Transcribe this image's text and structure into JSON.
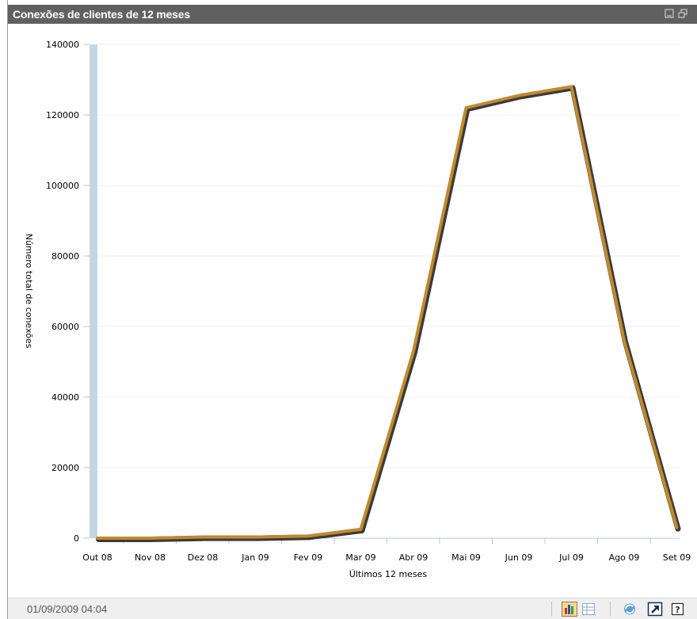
{
  "window": {
    "title": "Conexões de clientes de 12 meses",
    "icons": [
      "minimize-icon",
      "restore-window-icon"
    ]
  },
  "chart_data": {
    "type": "line",
    "xlabel": "Últimos 12 meses",
    "ylabel": "Número total de conexões",
    "categories": [
      "Out 08",
      "Nov 08",
      "Dez 08",
      "Jan 09",
      "Fev 09",
      "Mar 09",
      "Abr 09",
      "Mai 09",
      "Jun 09",
      "Jul 09",
      "Ago 09",
      "Set 09"
    ],
    "values": [
      0,
      0,
      300,
      300,
      600,
      2500,
      53000,
      122000,
      125500,
      128000,
      56000,
      3000
    ],
    "ylim": [
      0,
      140000
    ],
    "yticks": [
      "0",
      "20000",
      "40000",
      "60000",
      "80000",
      "100000",
      "120000",
      "140000"
    ],
    "grid": true,
    "line_color": "#c08a2c"
  },
  "footer": {
    "timestamp": "01/09/2009 04:04",
    "buttons": [
      "chart-view-icon",
      "table-view-icon",
      "refresh-icon",
      "open-external-icon",
      "help-icon"
    ]
  }
}
